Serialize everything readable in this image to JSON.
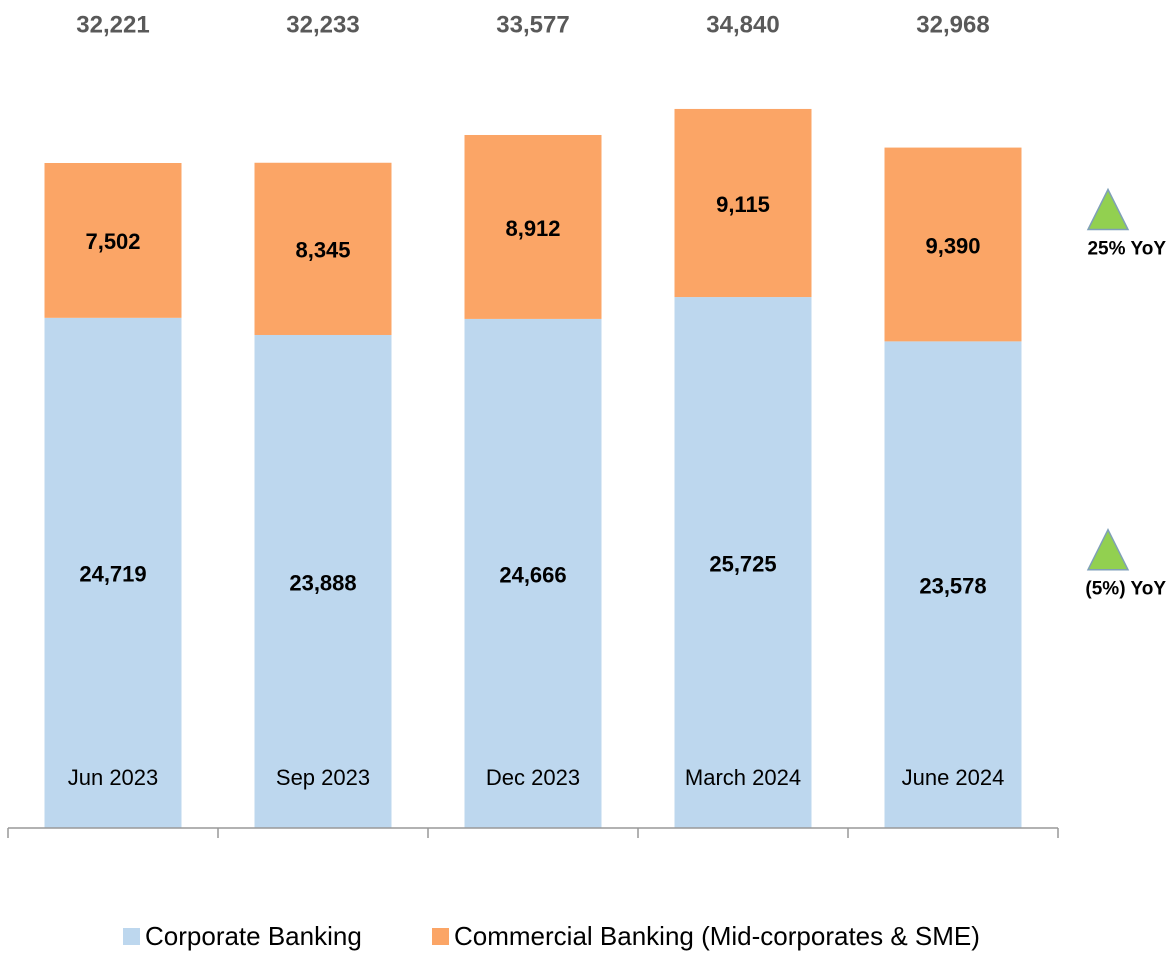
{
  "chart_data": {
    "type": "stacked_bar",
    "categories": [
      "Jun 2023",
      "Sep 2023",
      "Dec 2023",
      "March 2024",
      "June 2024"
    ],
    "series": [
      {
        "name": "Corporate Banking",
        "color": "#bdd7ee",
        "values": [
          24719,
          23888,
          24666,
          25725,
          23578
        ],
        "value_labels": [
          "24,719",
          "23,888",
          "24,666",
          "25,725",
          "23,578"
        ]
      },
      {
        "name": "Commercial Banking (Mid-corporates & SME)",
        "color": "#fba566",
        "values": [
          7502,
          8345,
          8912,
          9115,
          9390
        ],
        "value_labels": [
          "7,502",
          "8,345",
          "8,912",
          "9,115",
          "9,390"
        ]
      }
    ],
    "totals": [
      32221,
      32233,
      33577,
      34840,
      32968
    ],
    "total_labels": [
      "32,221",
      "32,233",
      "33,577",
      "34,840",
      "32,968"
    ],
    "annotations": [
      {
        "text": "25% YoY",
        "series": 1,
        "color": "#92d050"
      },
      {
        "text": "(5%) YoY",
        "series": 0,
        "color": "#92d050"
      }
    ]
  }
}
